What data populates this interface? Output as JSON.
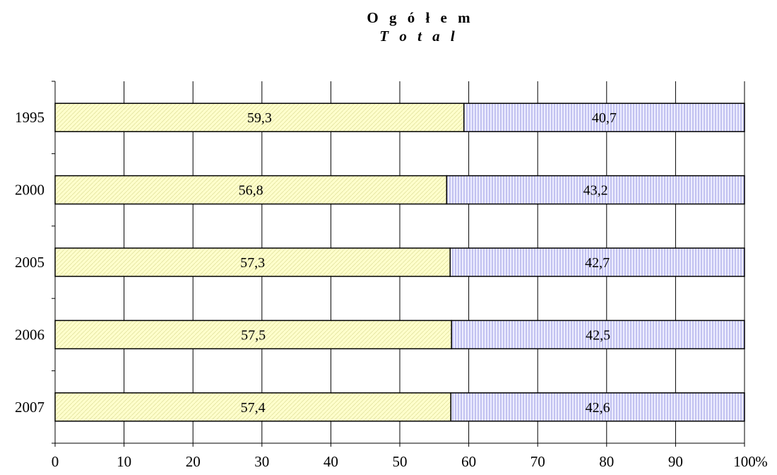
{
  "chart_data": {
    "type": "bar",
    "orientation": "horizontal",
    "stacked": true,
    "title": "O g ó ł e m",
    "subtitle": "T o t a l",
    "categories": [
      "1995",
      "2000",
      "2005",
      "2006",
      "2007"
    ],
    "series": [
      {
        "values": [
          59.3,
          56.8,
          57.3,
          57.5,
          57.4
        ],
        "labels": [
          "59,3",
          "56,8",
          "57,3",
          "57,5",
          "57,4"
        ],
        "color": "#ffffcc",
        "pattern": "diagonal-hatch"
      },
      {
        "values": [
          40.7,
          43.2,
          42.7,
          42.5,
          42.6
        ],
        "labels": [
          "40,7",
          "43,2",
          "42,7",
          "42,5",
          "42,6"
        ],
        "color": "#ccccff",
        "pattern": "vertical-lines"
      }
    ],
    "xlim": [
      0,
      100
    ],
    "xticks": [
      "0",
      "10",
      "20",
      "30",
      "40",
      "50",
      "60",
      "70",
      "80",
      "90",
      "100"
    ],
    "xunit": "%",
    "grid": "vertical",
    "legend": "none"
  }
}
